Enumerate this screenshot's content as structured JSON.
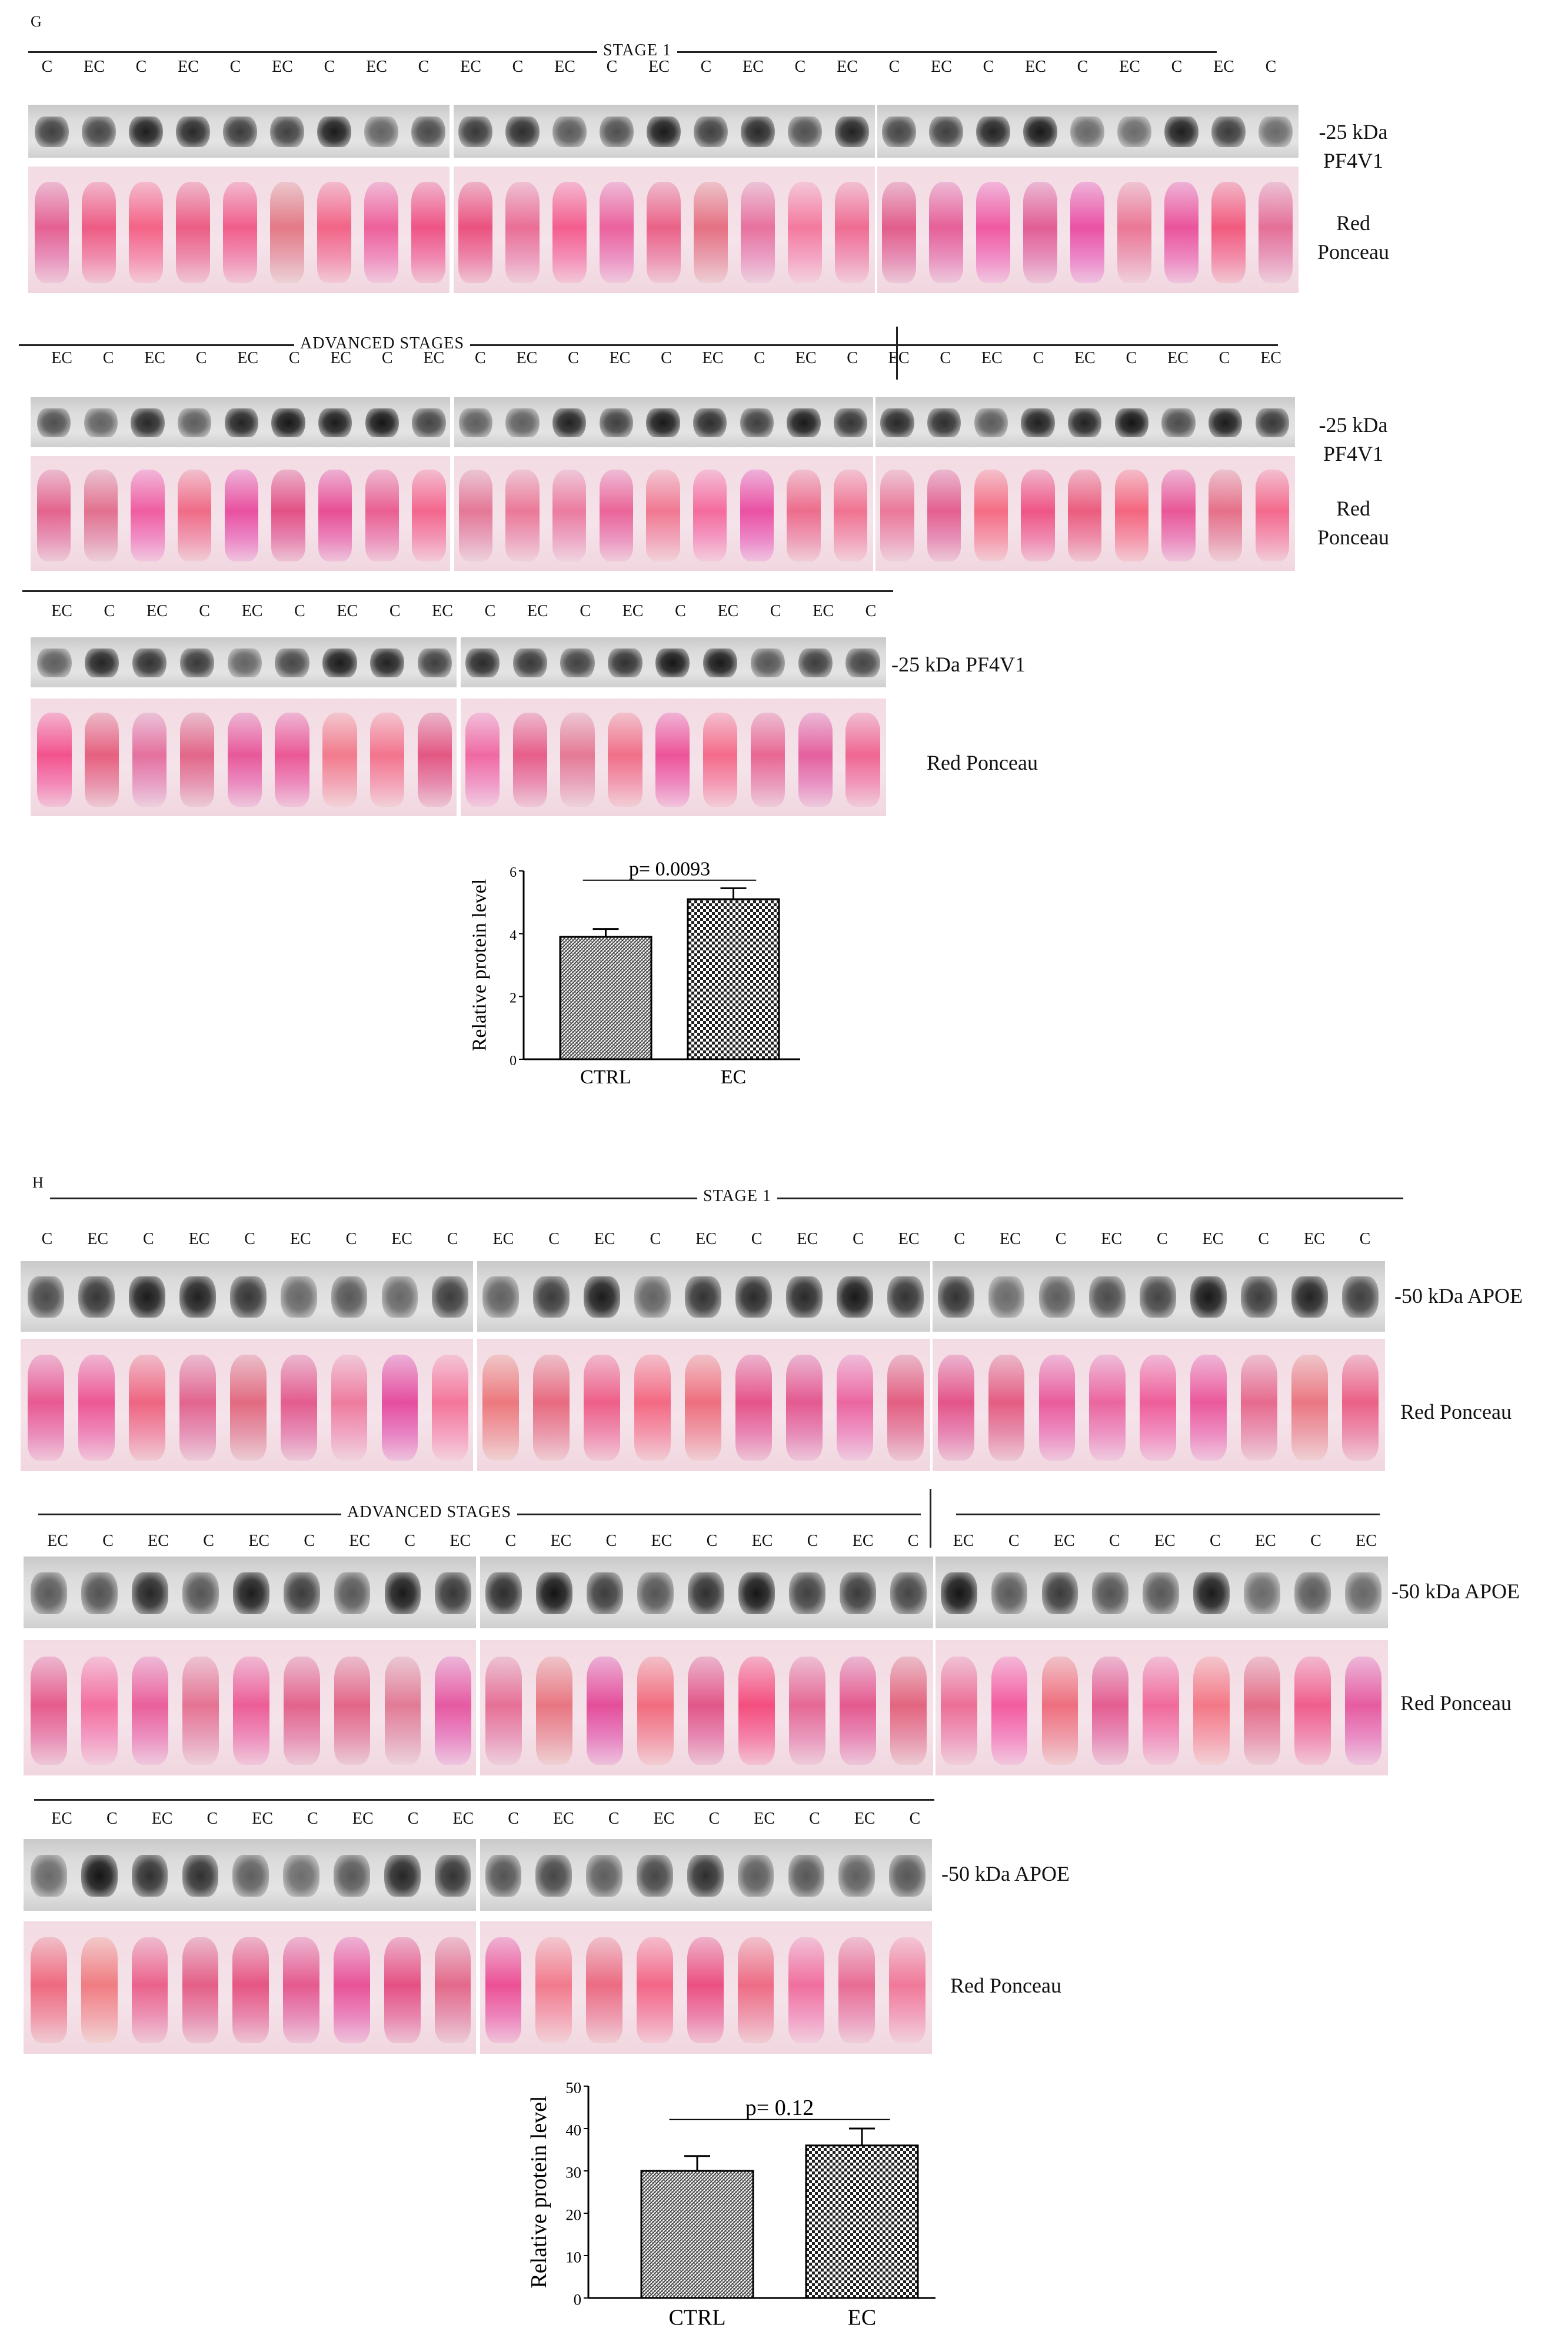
{
  "panel_G": {
    "letter": "G",
    "stage1_title": "STAGE 1",
    "stage1_lanes": [
      "C",
      "EC",
      "C",
      "EC",
      "C",
      "EC",
      "C",
      "EC",
      "C",
      "EC",
      "C",
      "EC",
      "C",
      "EC",
      "C",
      "EC",
      "C",
      "EC",
      "C",
      "EC",
      "C",
      "EC",
      "C",
      "EC",
      "C",
      "EC",
      "C"
    ],
    "advanced_title": "ADVANCED STAGES",
    "adv1_lanes": [
      "EC",
      "C",
      "EC",
      "C",
      "EC",
      "C",
      "EC",
      "C",
      "EC",
      "C",
      "EC",
      "C",
      "EC",
      "C",
      "EC",
      "C",
      "EC",
      "C",
      "EC",
      "C",
      "EC",
      "C",
      "EC",
      "C",
      "EC",
      "C",
      "EC"
    ],
    "adv2_lanes": [
      "EC",
      "C",
      "EC",
      "C",
      "EC",
      "C",
      "EC",
      "C",
      "EC",
      "C",
      "EC",
      "C",
      "EC",
      "C",
      "EC",
      "C",
      "EC",
      "C"
    ],
    "marker_label": "-25 kDa",
    "protein": "PF4V1",
    "marker_protein_inline": "-25 kDa   PF4V1",
    "stain_label_line1": "Red",
    "stain_label_line2": "Ponceau",
    "stain_label_inline": "Red Ponceau"
  },
  "panel_H": {
    "letter": "H",
    "stage1_title": "STAGE 1",
    "stage1_lanes": [
      "C",
      "EC",
      "C",
      "EC",
      "C",
      "EC",
      "C",
      "EC",
      "C",
      "EC",
      "C",
      "EC",
      "C",
      "EC",
      "C",
      "EC",
      "C",
      "EC",
      "C",
      "EC",
      "C",
      "EC",
      "C",
      "EC",
      "C",
      "EC",
      "C"
    ],
    "advanced_title": "ADVANCED STAGES",
    "adv1_lanes": [
      "EC",
      "C",
      "EC",
      "C",
      "EC",
      "C",
      "EC",
      "C",
      "EC",
      "C",
      "EC",
      "C",
      "EC",
      "C",
      "EC",
      "C",
      "EC",
      "C",
      "EC",
      "C",
      "EC",
      "C",
      "EC",
      "C",
      "EC",
      "C",
      "EC"
    ],
    "adv2_lanes": [
      "EC",
      "C",
      "EC",
      "C",
      "EC",
      "C",
      "EC",
      "C",
      "EC",
      "C",
      "EC",
      "C",
      "EC",
      "C",
      "EC",
      "C",
      "EC",
      "C"
    ],
    "marker_protein_inline": "-50 kDa APOE",
    "stain_label_inline": "Red Ponceau"
  },
  "chart_data": [
    {
      "type": "bar",
      "panel": "G",
      "categories": [
        "CTRL",
        "EC"
      ],
      "values": [
        3.9,
        5.1
      ],
      "errors": [
        0.25,
        0.35
      ],
      "ylabel": "Relative protein level",
      "ylim": [
        0,
        6
      ],
      "yticks": [
        "0",
        "2",
        "4",
        "6"
      ],
      "annotation": "p= 0.0093",
      "patterns": [
        "fine-hatch",
        "checker"
      ]
    },
    {
      "type": "bar",
      "panel": "H",
      "categories": [
        "CTRL",
        "EC"
      ],
      "values": [
        30,
        36
      ],
      "errors": [
        3.5,
        4
      ],
      "ylabel": "Relative protein level",
      "ylim": [
        0,
        50
      ],
      "yticks": [
        "0",
        "10",
        "20",
        "30",
        "40",
        "50"
      ],
      "annotation": "p= 0.12",
      "patterns": [
        "fine-hatch",
        "checker"
      ]
    }
  ]
}
